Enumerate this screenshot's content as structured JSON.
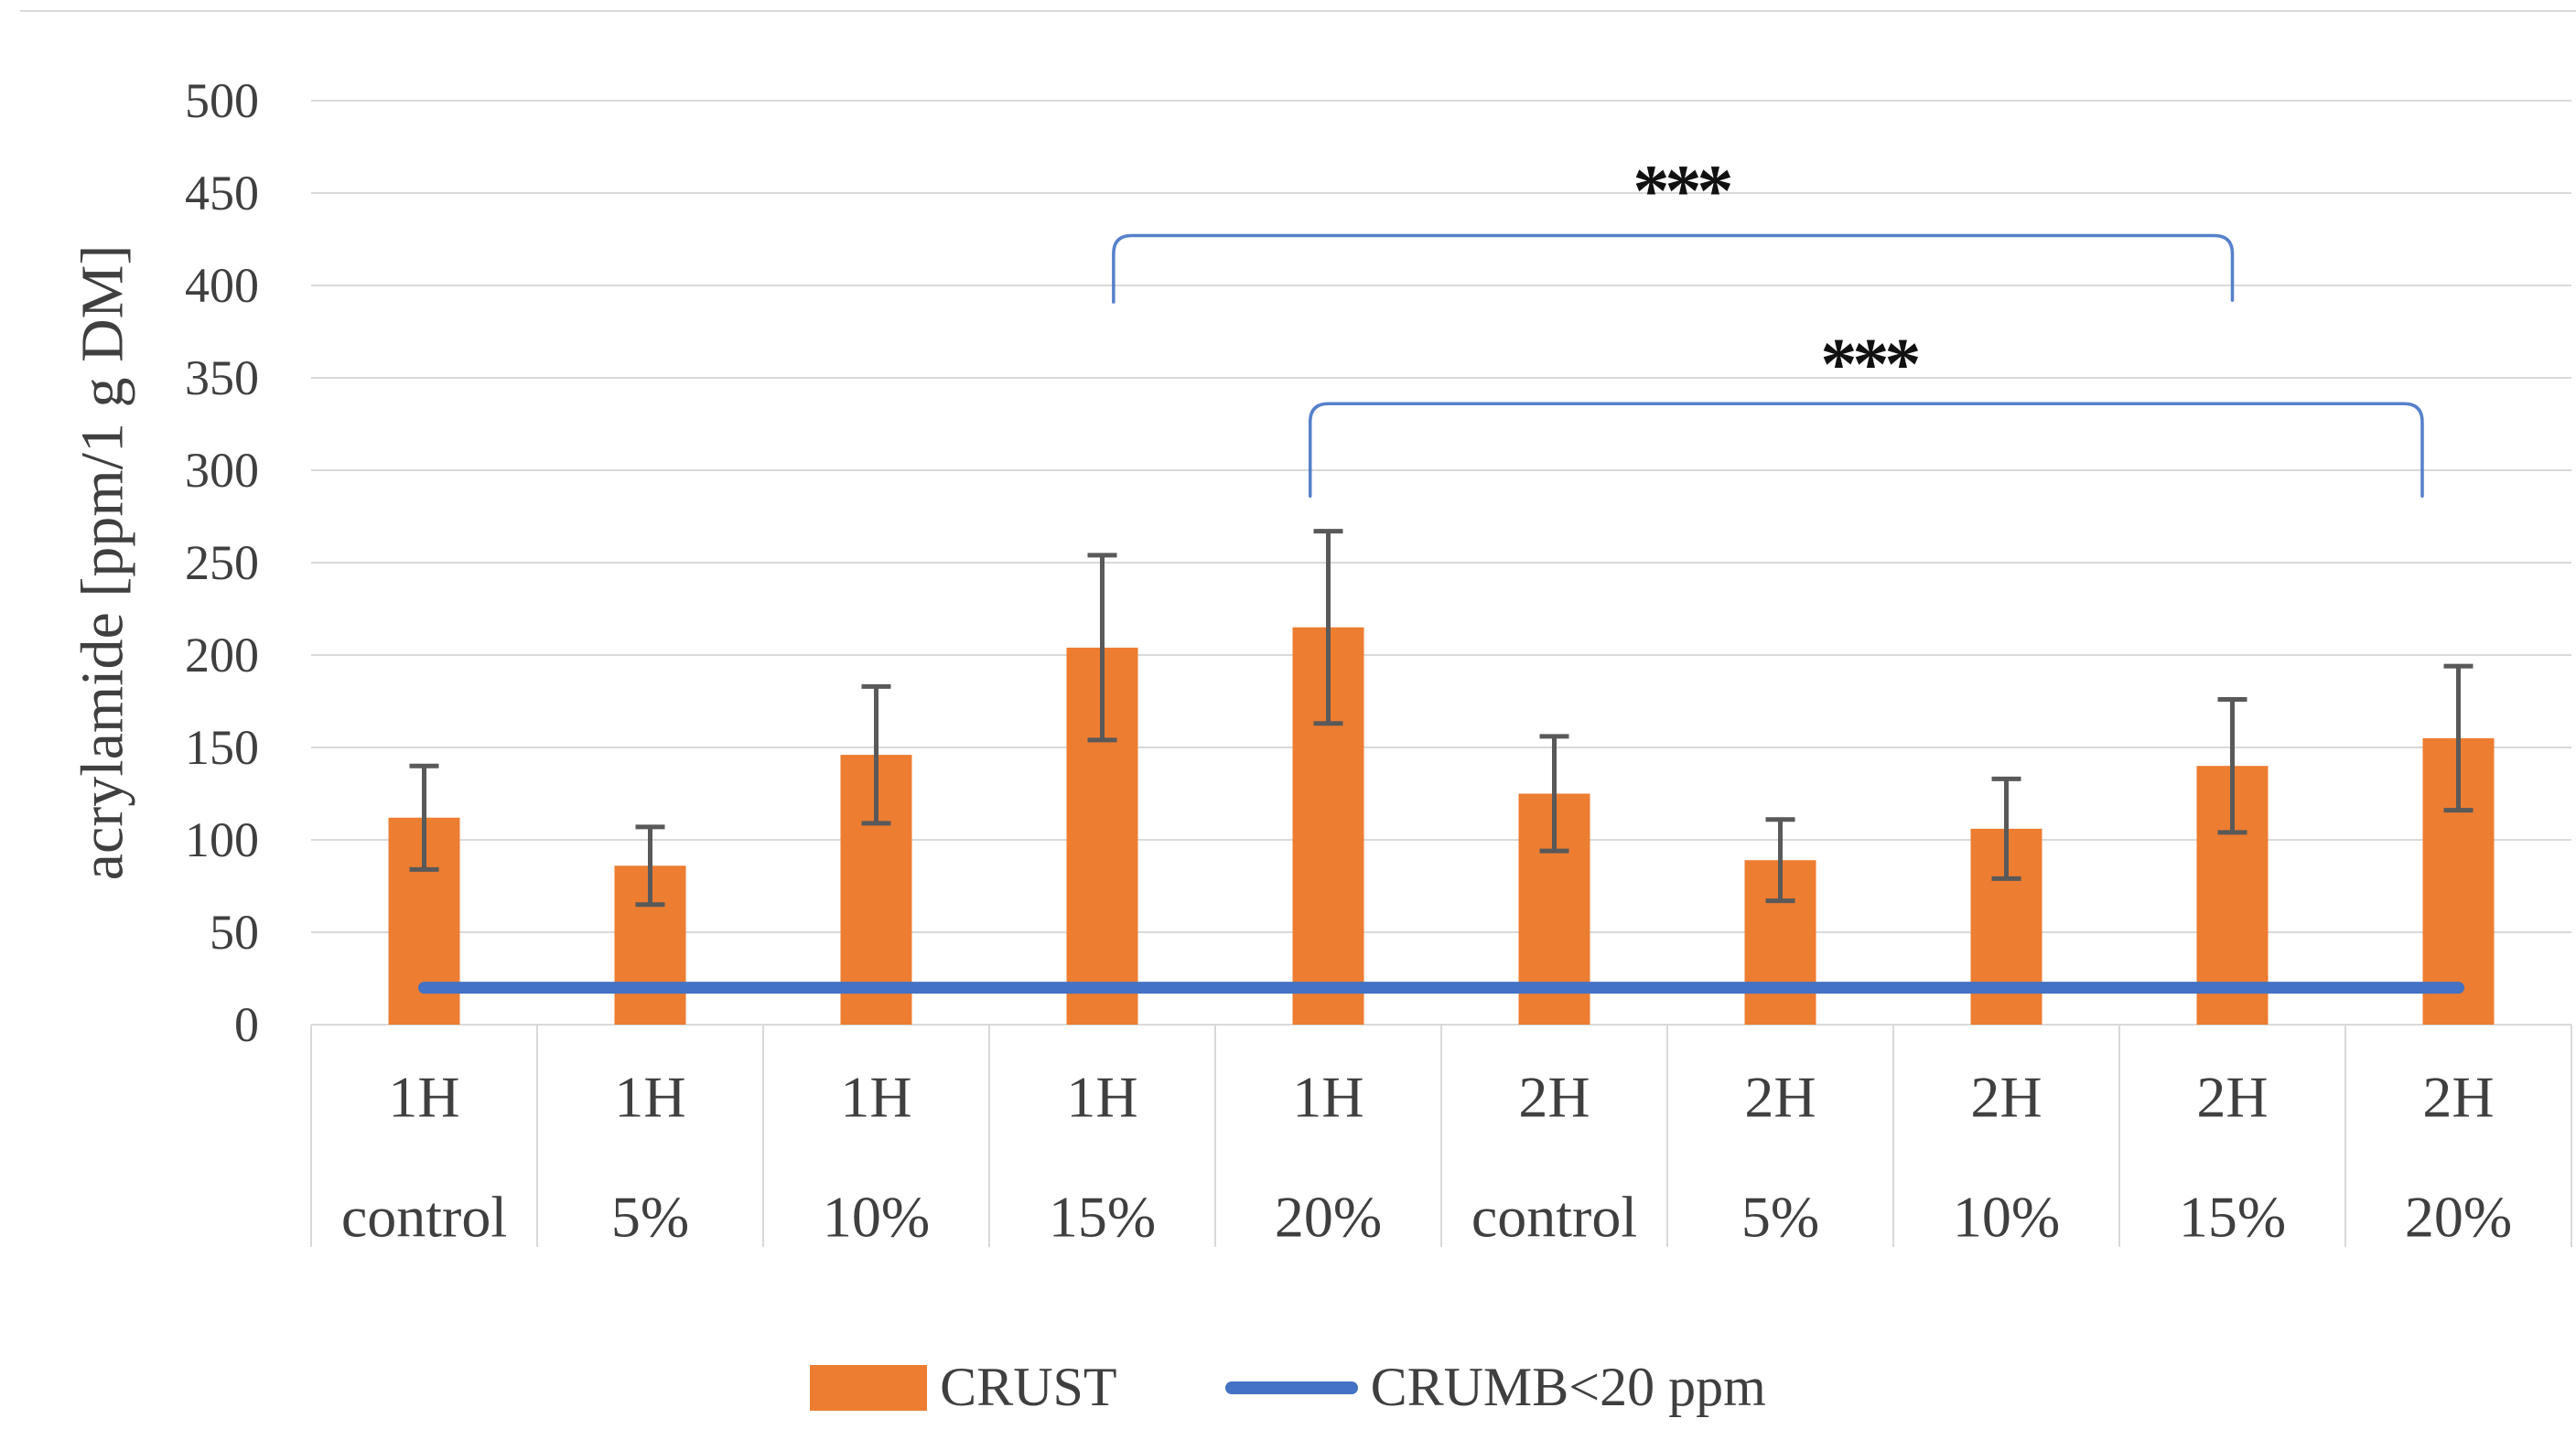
{
  "chart_data": {
    "type": "bar",
    "title": "",
    "ylabel": "acrylamide [ppm/1 g DM]",
    "xlabel": "",
    "ylim": [
      0,
      500
    ],
    "ytick_step": 50,
    "ytick_labels": [
      "0",
      "50",
      "100",
      "150",
      "200",
      "250",
      "300",
      "350",
      "400",
      "450",
      "500"
    ],
    "grid": true,
    "legend_position": "bottom",
    "categories": [
      "1H control",
      "1H 5%",
      "1H 10%",
      "1H 15%",
      "1H 20%",
      "2H control",
      "2H 5%",
      "2H 10%",
      "2H 15%",
      "2H 20%"
    ],
    "category_rows": {
      "time": [
        "1H",
        "1H",
        "1H",
        "1H",
        "1H",
        "2H",
        "2H",
        "2H",
        "2H",
        "2H"
      ],
      "treatment": [
        "control",
        "5%",
        "10%",
        "15%",
        "20%",
        "control",
        "5%",
        "10%",
        "15%",
        "20%"
      ]
    },
    "series": [
      {
        "name": "CRUST",
        "type": "bar",
        "color": "#ED7D31",
        "values": [
          112,
          86,
          146,
          204,
          215,
          125,
          89,
          106,
          140,
          155
        ],
        "error_bars": {
          "color": "#595959",
          "values": [
            28,
            21,
            37,
            50,
            52,
            31,
            22,
            27,
            36,
            39
          ]
        }
      },
      {
        "name": "CRUMB<20 ppm",
        "type": "line",
        "color": "#4472C4",
        "value": 20
      }
    ],
    "annotations": {
      "significance_brackets": [
        {
          "label": "***",
          "x1_cat": 3.05,
          "x2_cat": 8.0,
          "y_top": 427,
          "y_tail_left": 391,
          "y_tail_right": 392,
          "label_x_cat": 5.56,
          "label_y": 457,
          "color": "#4472C4"
        },
        {
          "label": "***",
          "x1_cat": 3.92,
          "x2_cat": 8.84,
          "y_top": 336,
          "y_tail_left": 286,
          "y_tail_right": 286,
          "label_x_cat": 6.39,
          "label_y": 363,
          "color": "#4472C4"
        }
      ]
    },
    "colors": {
      "grid": "#D9D9D9",
      "axis_text": "#3f3f3f",
      "star": "#111111",
      "background": "#ffffff"
    }
  },
  "legend": {
    "items": [
      {
        "label": "CRUST",
        "swatch": "rect",
        "color": "#ED7D31"
      },
      {
        "label": "CRUMB<20 ppm",
        "swatch": "line",
        "color": "#4472C4"
      }
    ]
  }
}
